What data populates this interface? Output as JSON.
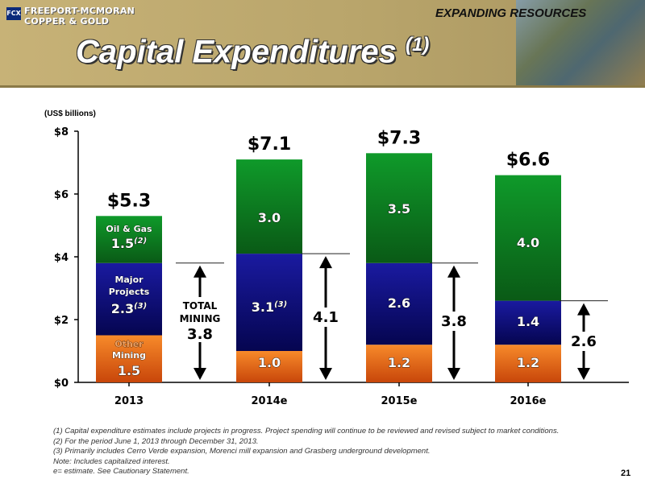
{
  "header": {
    "logo_mark": "FCX",
    "company_line1": "FREEPORT-MCMORAN",
    "company_line2": "COPPER & GOLD",
    "section_tag": "EXPANDING RESOURCES",
    "title": "Capital Expenditures",
    "title_sup": "(1)"
  },
  "units_label": "(US$ billions)",
  "colors": {
    "oil_gas": "#0b7a1f",
    "major_projects": "#0a0a6e",
    "other_mining": "#e8620c",
    "header_bg": "#b9a56b"
  },
  "chart_data": {
    "type": "bar",
    "stacked": true,
    "categories": [
      "2013",
      "2014e",
      "2015e",
      "2016e"
    ],
    "series": [
      {
        "name": "Other Mining",
        "values": [
          1.5,
          1.0,
          1.2,
          1.2
        ],
        "color": "#e8620c"
      },
      {
        "name": "Major Projects",
        "values": [
          2.3,
          3.1,
          2.6,
          1.4
        ],
        "color": "#0a0a6e"
      },
      {
        "name": "Oil & Gas",
        "values": [
          1.5,
          3.0,
          3.5,
          4.0
        ],
        "color": "#0b7a1f"
      }
    ],
    "totals": [
      5.3,
      7.1,
      7.3,
      6.6
    ],
    "total_labels": [
      "$5.3",
      "$7.1",
      "$7.3",
      "$6.6"
    ],
    "segment_labels": [
      [
        "1.5",
        "2.3",
        "1.5"
      ],
      [
        "1.0",
        "3.1",
        "3.0"
      ],
      [
        "1.2",
        "2.6",
        "3.5"
      ],
      [
        "1.2",
        "1.4",
        "4.0"
      ]
    ],
    "segment_label_sups": [
      [
        "",
        "(3)",
        "(2)"
      ],
      [
        "",
        "(3)",
        ""
      ],
      [
        "",
        "",
        ""
      ],
      [
        "",
        "",
        ""
      ]
    ],
    "inline_series_names": {
      "oil_gas": "Oil & Gas",
      "major_projects_line1": "Major",
      "major_projects_line2": "Projects",
      "other_mining_line1": "Other",
      "other_mining_line2": "Mining"
    },
    "total_mining": [
      3.8,
      4.1,
      3.8,
      2.6
    ],
    "total_mining_labels": [
      "3.8",
      "4.1",
      "3.8",
      "2.6"
    ],
    "total_mining_caption_line1": "TOTAL",
    "total_mining_caption_line2": "MINING",
    "ylim": [
      0,
      8
    ],
    "yticks": [
      0,
      2,
      4,
      6,
      8
    ],
    "ytick_labels": [
      "$0",
      "$2",
      "$4",
      "$6",
      "$8"
    ],
    "grid": false
  },
  "footnotes": [
    "(1)   Capital expenditure estimates include projects in progress. Project spending will continue to be reviewed and revised subject to market conditions.",
    "(2)   For the period June 1, 2013 through December 31, 2013.",
    "(3)  Primarily includes Cerro Verde expansion, Morenci mill expansion and Grasberg underground development.",
    "Note: Includes capitalized interest.",
    " e= estimate. See Cautionary Statement."
  ],
  "page_number": "21"
}
